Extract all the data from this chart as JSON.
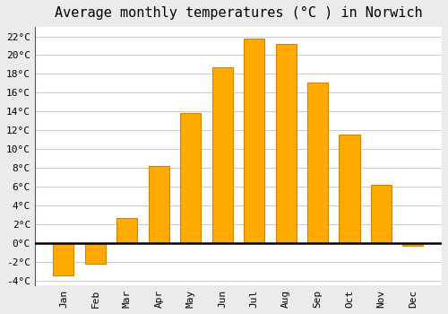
{
  "title": "Average monthly temperatures (°C ) in Norwich",
  "months": [
    "Jan",
    "Feb",
    "Mar",
    "Apr",
    "May",
    "Jun",
    "Jul",
    "Aug",
    "Sep",
    "Oct",
    "Nov",
    "Dec"
  ],
  "values": [
    -3.5,
    -2.2,
    2.7,
    8.2,
    13.8,
    18.7,
    21.8,
    21.2,
    17.1,
    11.5,
    6.2,
    -0.3
  ],
  "bar_color": "#FFAA00",
  "bar_edge_color": "#CC8800",
  "plot_bg_color": "#FFFFFF",
  "fig_bg_color": "#EBEBEB",
  "grid_color": "#CCCCCC",
  "zero_line_color": "#000000",
  "left_spine_color": "#555555",
  "ylim": [
    -4.5,
    23
  ],
  "yticks": [
    -4,
    -2,
    0,
    2,
    4,
    6,
    8,
    10,
    12,
    14,
    16,
    18,
    20,
    22
  ],
  "title_fontsize": 11,
  "tick_fontsize": 8,
  "figsize": [
    5.0,
    3.5
  ],
  "dpi": 100
}
